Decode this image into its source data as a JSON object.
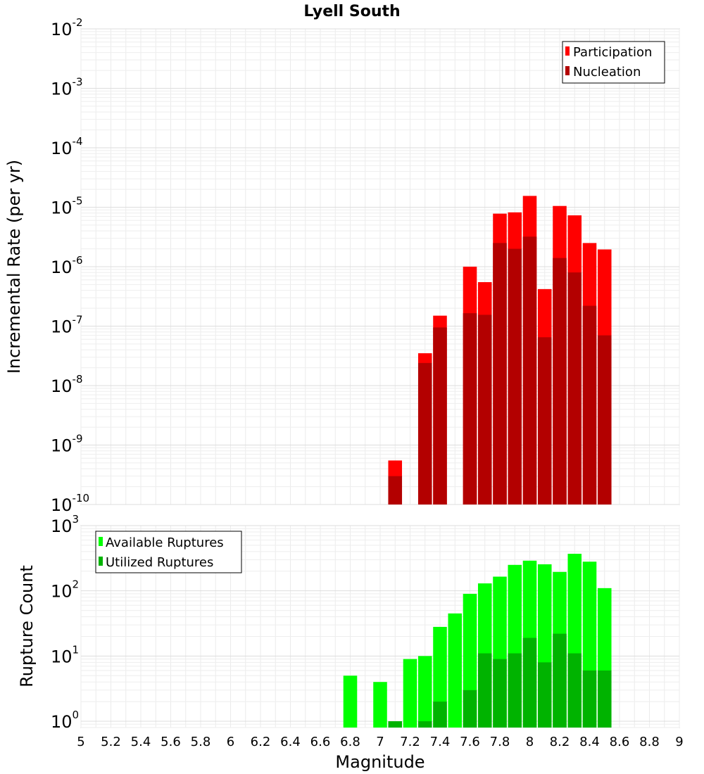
{
  "chart_data": {
    "title": "Lyell South",
    "xlabel": "Magnitude",
    "xlim": [
      5,
      9
    ],
    "x_ticks": [
      "5",
      "5.2",
      "5.4",
      "5.6",
      "5.8",
      "6",
      "6.2",
      "6.4",
      "6.6",
      "6.8",
      "7",
      "7.2",
      "7.4",
      "7.6",
      "7.8",
      "8",
      "8.2",
      "8.4",
      "8.6",
      "8.8",
      "9"
    ],
    "grid": true,
    "panels": [
      {
        "type": "bar",
        "scale": "log",
        "ylabel": "Incremental Rate (per yr)",
        "ylim": [
          1e-10,
          0.01
        ],
        "y_ticks": [
          {
            "base": "10",
            "exp": "-2"
          },
          {
            "base": "10",
            "exp": "-3"
          },
          {
            "base": "10",
            "exp": "-4"
          },
          {
            "base": "10",
            "exp": "-5"
          },
          {
            "base": "10",
            "exp": "-6"
          },
          {
            "base": "10",
            "exp": "-7"
          },
          {
            "base": "10",
            "exp": "-8"
          },
          {
            "base": "10",
            "exp": "-9"
          },
          {
            "base": "10",
            "exp": "-10"
          }
        ],
        "legend_position": "top-right",
        "x": [
          7.1,
          7.3,
          7.4,
          7.6,
          7.7,
          7.8,
          7.9,
          8.0,
          8.1,
          8.2,
          8.3,
          8.4,
          8.5
        ],
        "series": [
          {
            "name": "Participation",
            "color": "#ff0000",
            "values": [
              5.5e-10,
              3.5e-08,
              1.5e-07,
              1e-06,
              5.5e-07,
              7.8e-06,
              8.2e-06,
              1.55e-05,
              4.2e-07,
              1.05e-05,
              7.3e-06,
              2.5e-06,
              1.95e-06
            ]
          },
          {
            "name": "Nucleation",
            "color": "#b30000",
            "values": [
              3e-10,
              2.4e-08,
              9.5e-08,
              1.65e-07,
              1.55e-07,
              2.5e-06,
              2e-06,
              3.2e-06,
              6.5e-08,
              1.4e-06,
              8e-07,
              2.2e-07,
              7e-08
            ]
          }
        ]
      },
      {
        "type": "bar",
        "scale": "log",
        "ylabel": "Rupture Count",
        "ylim": [
          0.8,
          1000
        ],
        "y_ticks": [
          {
            "base": "10",
            "exp": "3"
          },
          {
            "base": "10",
            "exp": "2"
          },
          {
            "base": "10",
            "exp": "1"
          },
          {
            "base": "10",
            "exp": "0"
          }
        ],
        "legend_position": "top-left",
        "x": [
          6.8,
          7.0,
          7.1,
          7.2,
          7.3,
          7.4,
          7.5,
          7.6,
          7.7,
          7.8,
          7.9,
          8.0,
          8.1,
          8.2,
          8.3,
          8.4,
          8.5
        ],
        "series": [
          {
            "name": "Available Ruptures",
            "color": "#00ff00",
            "values": [
              5,
              4,
              1,
              9,
              10,
              28,
              45,
              90,
              130,
              165,
              250,
              290,
              255,
              195,
              370,
              280,
              110
            ]
          },
          {
            "name": "Utilized Ruptures",
            "color": "#00b300",
            "values": [
              0,
              0,
              1,
              0,
              1,
              2,
              0,
              3,
              11,
              9,
              11,
              19,
              8,
              22,
              11,
              6,
              6
            ]
          }
        ]
      }
    ]
  }
}
